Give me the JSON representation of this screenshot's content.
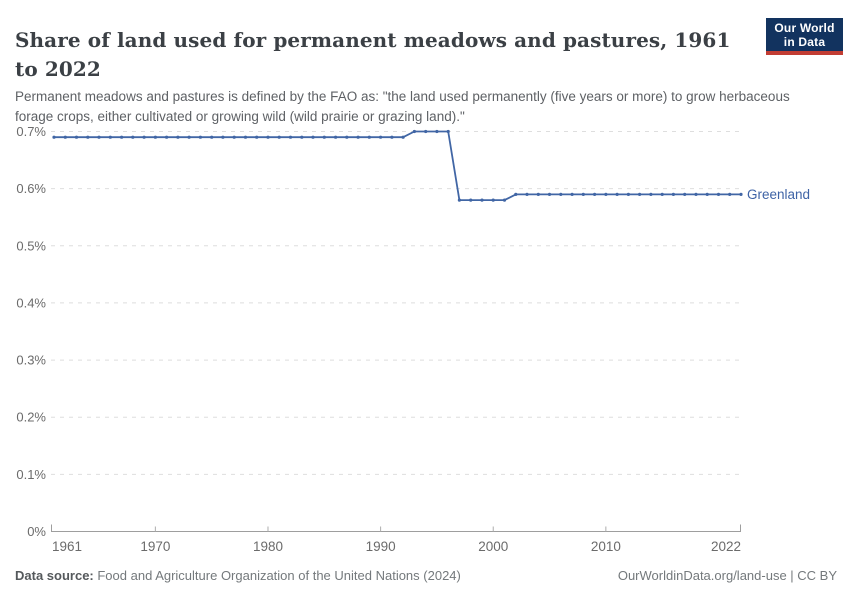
{
  "header": {
    "title": "Share of land used for permanent meadows and pastures, 1961 to 2022",
    "logo": {
      "line1": "Our World",
      "line2": "in Data"
    }
  },
  "subtitle": "Permanent meadows and pastures is defined by the FAO as: \"the land used permanently (five years or more) to grow herbaceous forage crops, either cultivated or growing wild (wild prairie or grazing land).\"",
  "chart_data": {
    "type": "line",
    "title": "Share of land used for permanent meadows and pastures, 1961 to 2022",
    "x": [
      1961,
      1962,
      1963,
      1964,
      1965,
      1966,
      1967,
      1968,
      1969,
      1970,
      1971,
      1972,
      1973,
      1974,
      1975,
      1976,
      1977,
      1978,
      1979,
      1980,
      1981,
      1982,
      1983,
      1984,
      1985,
      1986,
      1987,
      1988,
      1989,
      1990,
      1991,
      1992,
      1993,
      1994,
      1995,
      1996,
      1997,
      1998,
      1999,
      2000,
      2001,
      2002,
      2003,
      2004,
      2005,
      2006,
      2007,
      2008,
      2009,
      2010,
      2011,
      2012,
      2013,
      2014,
      2015,
      2016,
      2017,
      2018,
      2019,
      2020,
      2021,
      2022
    ],
    "series": [
      {
        "name": "Greenland",
        "values": [
          0.69,
          0.69,
          0.69,
          0.69,
          0.69,
          0.69,
          0.69,
          0.69,
          0.69,
          0.69,
          0.69,
          0.69,
          0.69,
          0.69,
          0.69,
          0.69,
          0.69,
          0.69,
          0.69,
          0.69,
          0.69,
          0.69,
          0.69,
          0.69,
          0.69,
          0.69,
          0.69,
          0.69,
          0.69,
          0.69,
          0.69,
          0.69,
          0.7,
          0.7,
          0.7,
          0.7,
          0.58,
          0.58,
          0.58,
          0.58,
          0.58,
          0.59,
          0.59,
          0.59,
          0.59,
          0.59,
          0.59,
          0.59,
          0.59,
          0.59,
          0.59,
          0.59,
          0.59,
          0.59,
          0.59,
          0.59,
          0.59,
          0.59,
          0.59,
          0.59,
          0.59,
          0.59
        ]
      }
    ],
    "xlim": [
      1961,
      2022
    ],
    "ylim": [
      0,
      0.7
    ],
    "xticks": [
      1961,
      1970,
      1980,
      1990,
      2000,
      2010,
      2022
    ],
    "xtick_labels": [
      "1961",
      "1970",
      "1980",
      "1990",
      "2000",
      "2010",
      "2022"
    ],
    "yticks": [
      0,
      0.1,
      0.2,
      0.3,
      0.4,
      0.5,
      0.6,
      0.7
    ],
    "ytick_labels": [
      "0%",
      "0.1%",
      "0.2%",
      "0.3%",
      "0.4%",
      "0.5%",
      "0.6%",
      "0.7%"
    ],
    "xlabel": "",
    "ylabel": "",
    "grid": "horizontal-dashed",
    "legend_position": "end-of-line"
  },
  "footer": {
    "source_label": "Data source:",
    "source_text": " Food and Agriculture Organization of the United Nations (2024)",
    "citation": "OurWorldinData.org/land-use | CC BY"
  },
  "colors": {
    "line": "#4166a5",
    "entity_label": "#3e63a6",
    "grid": "#dedede",
    "axis": "#9e9e9e",
    "tick": "#adadad",
    "axis_text": "#6b6b6b",
    "logo_bg": "#12335f",
    "logo_red": "#c23d33"
  }
}
